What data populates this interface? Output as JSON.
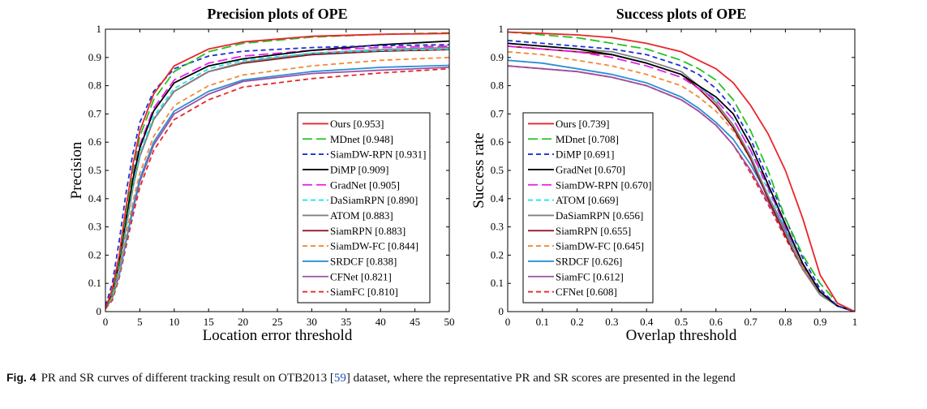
{
  "chart_data": [
    {
      "type": "line",
      "title": "Precision plots of OPE",
      "xlabel": "Location error threshold",
      "ylabel": "Precision",
      "xlim": [
        0,
        50
      ],
      "ylim": [
        0,
        1
      ],
      "xticks": [
        "0",
        "5",
        "10",
        "15",
        "20",
        "25",
        "30",
        "35",
        "40",
        "45",
        "50"
      ],
      "yticks": [
        "0",
        "0.1",
        "0.2",
        "0.3",
        "0.4",
        "0.5",
        "0.6",
        "0.7",
        "0.8",
        "0.9",
        "1"
      ],
      "legend_position": "lower-right",
      "grid": false,
      "series": [
        {
          "name": "Ours [0.953]",
          "color": "#e8262a",
          "dash": "solid",
          "x": [
            0,
            1,
            2,
            3,
            4,
            5,
            7,
            10,
            15,
            20,
            30,
            40,
            50
          ],
          "y": [
            0.01,
            0.08,
            0.2,
            0.37,
            0.52,
            0.64,
            0.77,
            0.87,
            0.93,
            0.955,
            0.975,
            0.982,
            0.985
          ]
        },
        {
          "name": "MDnet [0.948]",
          "color": "#22c322",
          "dash": "long",
          "x": [
            0,
            1,
            2,
            3,
            4,
            5,
            7,
            10,
            15,
            20,
            30,
            40,
            50
          ],
          "y": [
            0.01,
            0.07,
            0.19,
            0.35,
            0.5,
            0.62,
            0.75,
            0.85,
            0.92,
            0.95,
            0.972,
            0.982,
            0.987
          ]
        },
        {
          "name": "SiamDW-RPN [0.931]",
          "color": "#1f2fd4",
          "dash": "dash",
          "x": [
            0,
            1,
            2,
            3,
            4,
            5,
            7,
            10,
            15,
            20,
            30,
            40,
            50
          ],
          "y": [
            0.02,
            0.1,
            0.25,
            0.42,
            0.56,
            0.67,
            0.78,
            0.86,
            0.905,
            0.922,
            0.935,
            0.942,
            0.945
          ]
        },
        {
          "name": "DiMP [0.909]",
          "color": "#000000",
          "dash": "solid",
          "x": [
            0,
            1,
            2,
            3,
            4,
            5,
            7,
            10,
            15,
            20,
            30,
            40,
            50
          ],
          "y": [
            0.01,
            0.07,
            0.18,
            0.33,
            0.47,
            0.58,
            0.71,
            0.81,
            0.87,
            0.895,
            0.925,
            0.945,
            0.958
          ]
        },
        {
          "name": "GradNet [0.905]",
          "color": "#e61ee6",
          "dash": "long",
          "x": [
            0,
            1,
            2,
            3,
            4,
            5,
            7,
            10,
            15,
            20,
            30,
            40,
            50
          ],
          "y": [
            0.01,
            0.07,
            0.19,
            0.34,
            0.48,
            0.59,
            0.72,
            0.82,
            0.88,
            0.905,
            0.925,
            0.935,
            0.94
          ]
        },
        {
          "name": "DaSiamRPN [0.890]",
          "color": "#1ee6e6",
          "dash": "dash",
          "x": [
            0,
            1,
            2,
            3,
            4,
            5,
            7,
            10,
            15,
            20,
            30,
            40,
            50
          ],
          "y": [
            0.01,
            0.06,
            0.17,
            0.31,
            0.45,
            0.56,
            0.69,
            0.79,
            0.86,
            0.89,
            0.915,
            0.925,
            0.93
          ]
        },
        {
          "name": "ATOM [0.883]",
          "color": "#808080",
          "dash": "solid",
          "x": [
            0,
            1,
            2,
            3,
            4,
            5,
            7,
            10,
            15,
            20,
            30,
            40,
            50
          ],
          "y": [
            0.01,
            0.06,
            0.16,
            0.3,
            0.44,
            0.55,
            0.68,
            0.78,
            0.85,
            0.883,
            0.915,
            0.928,
            0.935
          ]
        },
        {
          "name": "SiamRPN [0.883]",
          "color": "#8b0a1a",
          "dash": "solid",
          "x": [
            0,
            1,
            2,
            3,
            4,
            5,
            7,
            10,
            15,
            20,
            30,
            40,
            50
          ],
          "y": [
            0.01,
            0.06,
            0.16,
            0.3,
            0.44,
            0.55,
            0.68,
            0.78,
            0.85,
            0.88,
            0.91,
            0.922,
            0.928
          ]
        },
        {
          "name": "SiamDW-FC [0.844]",
          "color": "#f28a36",
          "dash": "dash",
          "x": [
            0,
            1,
            2,
            3,
            4,
            5,
            7,
            10,
            15,
            20,
            30,
            40,
            50
          ],
          "y": [
            0.01,
            0.05,
            0.14,
            0.27,
            0.39,
            0.49,
            0.62,
            0.73,
            0.8,
            0.838,
            0.87,
            0.89,
            0.9
          ]
        },
        {
          "name": "SRDCF [0.838]",
          "color": "#2b8fd6",
          "dash": "solid",
          "x": [
            0,
            1,
            2,
            3,
            4,
            5,
            7,
            10,
            15,
            20,
            30,
            40,
            50
          ],
          "y": [
            0.01,
            0.05,
            0.13,
            0.25,
            0.37,
            0.47,
            0.6,
            0.71,
            0.78,
            0.82,
            0.85,
            0.865,
            0.872
          ]
        },
        {
          "name": "CFNet [0.821]",
          "color": "#9e4fa0",
          "dash": "solid",
          "x": [
            0,
            1,
            2,
            3,
            4,
            5,
            7,
            10,
            15,
            20,
            30,
            40,
            50
          ],
          "y": [
            0.01,
            0.05,
            0.13,
            0.25,
            0.36,
            0.46,
            0.59,
            0.7,
            0.77,
            0.815,
            0.843,
            0.855,
            0.865
          ]
        },
        {
          "name": "SiamFC [0.810]",
          "color": "#e8262a",
          "dash": "dash",
          "x": [
            0,
            1,
            2,
            3,
            4,
            5,
            7,
            10,
            15,
            20,
            30,
            40,
            50
          ],
          "y": [
            0.01,
            0.04,
            0.12,
            0.23,
            0.34,
            0.44,
            0.57,
            0.68,
            0.75,
            0.795,
            0.825,
            0.845,
            0.86
          ]
        }
      ]
    },
    {
      "type": "line",
      "title": "Success plots of OPE",
      "xlabel": "Overlap threshold",
      "ylabel": "Success rate",
      "xlim": [
        0,
        1
      ],
      "ylim": [
        0,
        1
      ],
      "xticks": [
        "0",
        "0.1",
        "0.2",
        "0.3",
        "0.4",
        "0.5",
        "0.6",
        "0.7",
        "0.8",
        "0.9",
        "1"
      ],
      "yticks": [
        "0",
        "0.1",
        "0.2",
        "0.3",
        "0.4",
        "0.5",
        "0.6",
        "0.7",
        "0.8",
        "0.9",
        "1"
      ],
      "legend_position": "lower-left",
      "grid": false,
      "series": [
        {
          "name": "Ours [0.739]",
          "color": "#e8262a",
          "dash": "solid",
          "x": [
            0,
            0.1,
            0.2,
            0.3,
            0.4,
            0.5,
            0.55,
            0.6,
            0.65,
            0.7,
            0.75,
            0.8,
            0.85,
            0.9,
            0.95,
            1.0
          ],
          "y": [
            0.99,
            0.985,
            0.98,
            0.97,
            0.95,
            0.92,
            0.89,
            0.86,
            0.81,
            0.73,
            0.63,
            0.5,
            0.33,
            0.13,
            0.03,
            0.0
          ]
        },
        {
          "name": "MDnet [0.708]",
          "color": "#22c322",
          "dash": "long",
          "x": [
            0,
            0.1,
            0.2,
            0.3,
            0.4,
            0.5,
            0.55,
            0.6,
            0.65,
            0.7,
            0.75,
            0.8,
            0.85,
            0.9,
            0.95,
            1.0
          ],
          "y": [
            0.99,
            0.98,
            0.97,
            0.95,
            0.93,
            0.89,
            0.86,
            0.82,
            0.75,
            0.64,
            0.5,
            0.33,
            0.2,
            0.1,
            0.03,
            0.0
          ]
        },
        {
          "name": "DiMP [0.691]",
          "color": "#1f2fd4",
          "dash": "dash",
          "x": [
            0,
            0.1,
            0.2,
            0.3,
            0.4,
            0.5,
            0.55,
            0.6,
            0.65,
            0.7,
            0.75,
            0.8,
            0.85,
            0.9,
            0.95,
            1.0
          ],
          "y": [
            0.96,
            0.95,
            0.94,
            0.93,
            0.91,
            0.87,
            0.84,
            0.79,
            0.72,
            0.61,
            0.47,
            0.33,
            0.19,
            0.08,
            0.02,
            0.0
          ]
        },
        {
          "name": "GradNet [0.670]",
          "color": "#000000",
          "dash": "solid",
          "x": [
            0,
            0.1,
            0.2,
            0.3,
            0.4,
            0.5,
            0.55,
            0.6,
            0.65,
            0.7,
            0.75,
            0.8,
            0.85,
            0.9,
            0.95,
            1.0
          ],
          "y": [
            0.95,
            0.94,
            0.93,
            0.91,
            0.88,
            0.84,
            0.8,
            0.76,
            0.7,
            0.59,
            0.45,
            0.31,
            0.17,
            0.07,
            0.02,
            0.0
          ]
        },
        {
          "name": "SiamDW-RPN [0.670]",
          "color": "#e61ee6",
          "dash": "long",
          "x": [
            0,
            0.1,
            0.2,
            0.3,
            0.4,
            0.5,
            0.55,
            0.6,
            0.65,
            0.7,
            0.75,
            0.8,
            0.85,
            0.9,
            0.95,
            1.0
          ],
          "y": [
            0.94,
            0.93,
            0.92,
            0.9,
            0.87,
            0.83,
            0.79,
            0.75,
            0.68,
            0.57,
            0.44,
            0.3,
            0.17,
            0.07,
            0.02,
            0.0
          ]
        },
        {
          "name": "ATOM [0.669]",
          "color": "#1ee6e6",
          "dash": "dash",
          "x": [
            0,
            0.1,
            0.2,
            0.3,
            0.4,
            0.5,
            0.55,
            0.6,
            0.65,
            0.7,
            0.75,
            0.8,
            0.85,
            0.9,
            0.95,
            1.0
          ],
          "y": [
            0.95,
            0.94,
            0.93,
            0.91,
            0.88,
            0.84,
            0.8,
            0.75,
            0.68,
            0.57,
            0.43,
            0.3,
            0.17,
            0.07,
            0.02,
            0.0
          ]
        },
        {
          "name": "DaSiamRPN [0.656]",
          "color": "#808080",
          "dash": "solid",
          "x": [
            0,
            0.1,
            0.2,
            0.3,
            0.4,
            0.5,
            0.55,
            0.6,
            0.65,
            0.7,
            0.75,
            0.8,
            0.85,
            0.9,
            0.95,
            1.0
          ],
          "y": [
            0.95,
            0.94,
            0.93,
            0.92,
            0.89,
            0.85,
            0.8,
            0.74,
            0.66,
            0.55,
            0.41,
            0.28,
            0.15,
            0.06,
            0.02,
            0.0
          ]
        },
        {
          "name": "SiamRPN [0.655]",
          "color": "#8b0a1a",
          "dash": "solid",
          "x": [
            0,
            0.1,
            0.2,
            0.3,
            0.4,
            0.5,
            0.55,
            0.6,
            0.65,
            0.7,
            0.75,
            0.8,
            0.85,
            0.9,
            0.95,
            1.0
          ],
          "y": [
            0.94,
            0.93,
            0.92,
            0.91,
            0.88,
            0.84,
            0.79,
            0.73,
            0.65,
            0.54,
            0.4,
            0.27,
            0.15,
            0.06,
            0.02,
            0.0
          ]
        },
        {
          "name": "SiamDW-FC [0.645]",
          "color": "#f28a36",
          "dash": "dash",
          "x": [
            0,
            0.1,
            0.2,
            0.3,
            0.4,
            0.5,
            0.55,
            0.6,
            0.65,
            0.7,
            0.75,
            0.8,
            0.85,
            0.9,
            0.95,
            1.0
          ],
          "y": [
            0.92,
            0.91,
            0.89,
            0.87,
            0.84,
            0.8,
            0.76,
            0.71,
            0.64,
            0.54,
            0.41,
            0.28,
            0.16,
            0.07,
            0.02,
            0.0
          ]
        },
        {
          "name": "SRDCF [0.626]",
          "color": "#2b8fd6",
          "dash": "solid",
          "x": [
            0,
            0.1,
            0.2,
            0.3,
            0.4,
            0.5,
            0.55,
            0.6,
            0.65,
            0.7,
            0.75,
            0.8,
            0.85,
            0.9,
            0.95,
            1.0
          ],
          "y": [
            0.89,
            0.88,
            0.86,
            0.84,
            0.81,
            0.76,
            0.72,
            0.67,
            0.61,
            0.52,
            0.41,
            0.29,
            0.17,
            0.07,
            0.02,
            0.0
          ]
        },
        {
          "name": "SiamFC [0.612]",
          "color": "#9e4fa0",
          "dash": "solid",
          "x": [
            0,
            0.1,
            0.2,
            0.3,
            0.4,
            0.5,
            0.55,
            0.6,
            0.65,
            0.7,
            0.75,
            0.8,
            0.85,
            0.9,
            0.95,
            1.0
          ],
          "y": [
            0.87,
            0.86,
            0.85,
            0.83,
            0.8,
            0.75,
            0.71,
            0.66,
            0.59,
            0.5,
            0.39,
            0.27,
            0.16,
            0.07,
            0.02,
            0.0
          ]
        },
        {
          "name": "CFNet [0.608]",
          "color": "#e8262a",
          "dash": "dash",
          "x": [
            0,
            0.1,
            0.2,
            0.3,
            0.4,
            0.5,
            0.55,
            0.6,
            0.65,
            0.7,
            0.75,
            0.8,
            0.85,
            0.9,
            0.95,
            1.0
          ],
          "y": [
            0.87,
            0.86,
            0.85,
            0.83,
            0.8,
            0.75,
            0.71,
            0.66,
            0.59,
            0.49,
            0.38,
            0.26,
            0.15,
            0.06,
            0.02,
            0.0
          ]
        }
      ]
    }
  ],
  "caption": {
    "label": "Fig. 4",
    "text_before": "PR and SR curves of different tracking result on OTB2013 [",
    "ref": "59",
    "text_after": "] dataset, where the representative PR and SR scores are presented in the legend"
  }
}
